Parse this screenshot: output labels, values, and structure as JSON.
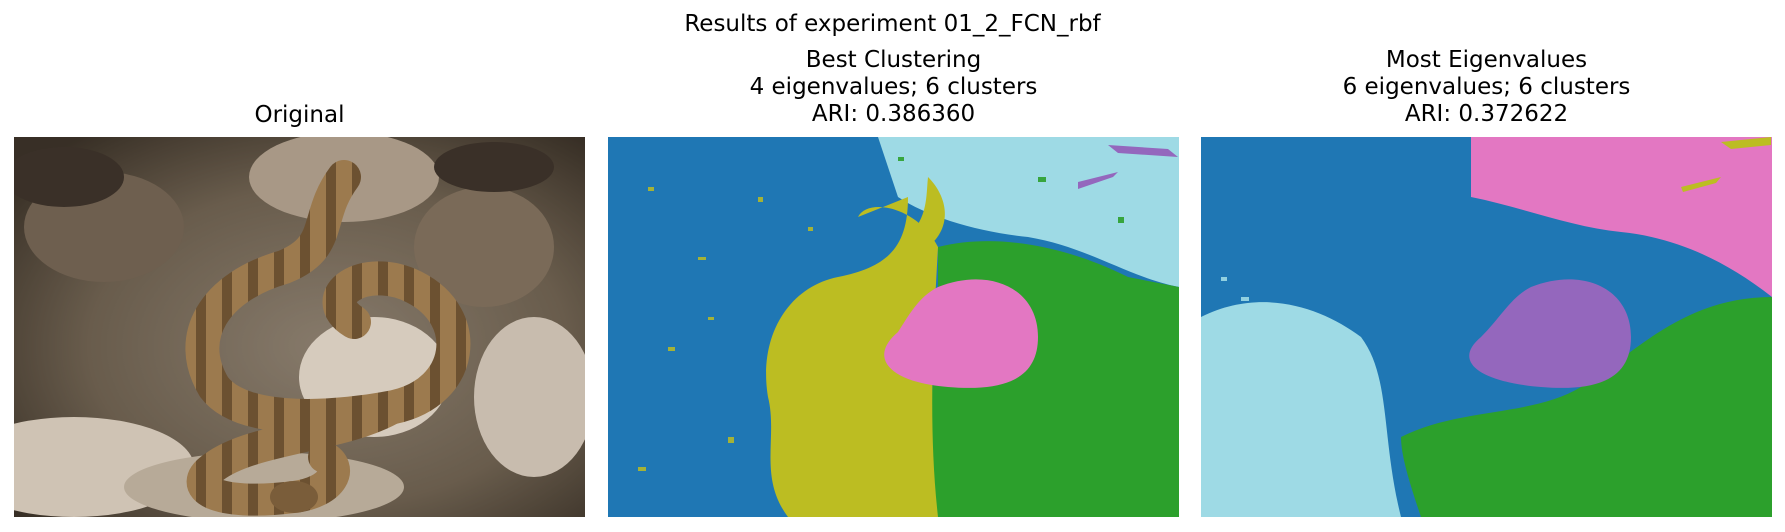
{
  "figure": {
    "suptitle": "Results of experiment 01_2_FCN_rbf"
  },
  "panels": [
    {
      "title_lines": [
        "Original"
      ],
      "content": "photo of a coiled rattlesnake on rocks"
    },
    {
      "title_lines": [
        "Best Clustering",
        "4 eigenvalues; 6 clusters",
        "ARI: 0.386360"
      ],
      "clusters": 6,
      "eigenvalues": 4,
      "ari": 0.38636
    },
    {
      "title_lines": [
        "Most Eigenvalues",
        "6 eigenvalues; 6 clusters",
        "ARI: 0.372622"
      ],
      "clusters": 6,
      "eigenvalues": 6,
      "ari": 0.372622
    }
  ],
  "colors": {
    "blue": "#1f77b4",
    "olive": "#bcbd22",
    "green": "#2ca02c",
    "pink": "#e377c2",
    "cyan": "#9edae5",
    "purple": "#9467bd"
  }
}
